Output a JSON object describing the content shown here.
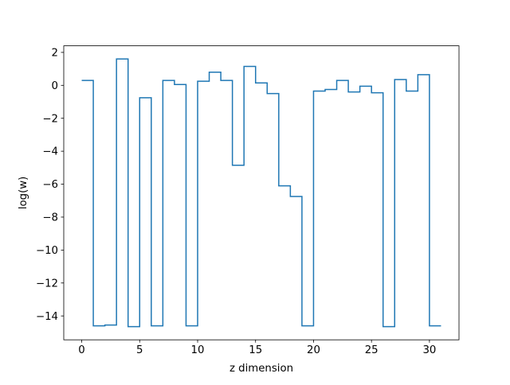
{
  "chart_data": {
    "type": "line",
    "drawstyle": "steps-post",
    "xlabel": "z dimension",
    "ylabel": "log(w)",
    "xlim": [
      -1.55,
      32.55
    ],
    "ylim": [
      -15.45,
      2.4
    ],
    "xticks": [
      0,
      5,
      10,
      15,
      20,
      25,
      30
    ],
    "xtick_labels": [
      "0",
      "5",
      "10",
      "15",
      "20",
      "25",
      "30"
    ],
    "yticks": [
      2,
      0,
      -2,
      -4,
      -6,
      -8,
      -10,
      -12,
      -14
    ],
    "ytick_labels": [
      "2",
      "0",
      "−2",
      "−4",
      "−6",
      "−8",
      "−10",
      "−12",
      "−14"
    ],
    "grid": false,
    "series": [
      {
        "color": "#1f77b4",
        "x": [
          0,
          1,
          2,
          3,
          4,
          5,
          6,
          7,
          8,
          9,
          10,
          11,
          12,
          13,
          14,
          15,
          16,
          17,
          18,
          19,
          20,
          21,
          22,
          23,
          24,
          25,
          26,
          27,
          28,
          29,
          30,
          31
        ],
        "y": [
          0.3,
          -14.6,
          -14.55,
          1.6,
          -14.65,
          -0.75,
          -14.6,
          0.3,
          0.05,
          -14.6,
          0.25,
          0.8,
          0.3,
          -4.85,
          1.15,
          0.15,
          -0.5,
          -6.1,
          -6.75,
          -14.6,
          -0.35,
          -0.25,
          0.3,
          -0.4,
          -0.05,
          -0.45,
          -14.65,
          0.35,
          -0.35,
          0.65,
          -14.6,
          -14.6
        ]
      }
    ]
  }
}
